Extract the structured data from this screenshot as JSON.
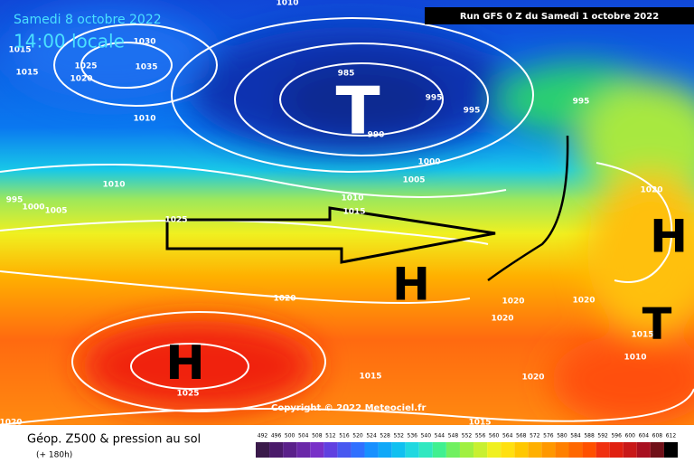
{
  "header": {
    "date": "Samedi 8 octobre 2022",
    "time": "14:00 locale",
    "run": "Run GFS 0 Z du Samedi 1 octobre 2022"
  },
  "map": {
    "pressure_labels": [
      "1010",
      "1015",
      "1030",
      "1035",
      "1025",
      "1020",
      "1010",
      "985",
      "990",
      "995",
      "995",
      "995",
      "1000",
      "1005",
      "1010",
      "995",
      "1000",
      "1005",
      "1010",
      "1015",
      "1025",
      "1020",
      "1020",
      "1020",
      "1020",
      "1015",
      "1010",
      "1015",
      "1020",
      "1025",
      "1020",
      "1015",
      "1020",
      "1015"
    ],
    "centers": [
      "T",
      "H",
      "H",
      "H",
      "T"
    ],
    "copyright": "Copyright © 2022 Meteociel.fr"
  },
  "footer": {
    "title": "Géop. Z500 & pression au sol",
    "lead": "(+ 180h)",
    "scale": [
      492,
      496,
      500,
      504,
      508,
      512,
      516,
      520,
      524,
      528,
      532,
      536,
      540,
      544,
      548,
      552,
      556,
      560,
      564,
      568,
      572,
      576,
      580,
      584,
      588,
      592,
      596,
      600,
      604,
      608,
      612
    ]
  }
}
